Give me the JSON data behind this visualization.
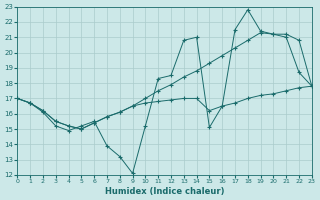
{
  "xlabel": "Humidex (Indice chaleur)",
  "bg_color": "#cce8e8",
  "grid_color": "#aacccc",
  "line_color": "#1a6b6b",
  "xlim": [
    0,
    23
  ],
  "ylim": [
    12,
    23
  ],
  "xticks": [
    0,
    1,
    2,
    3,
    4,
    5,
    6,
    7,
    8,
    9,
    10,
    11,
    12,
    13,
    14,
    15,
    16,
    17,
    18,
    19,
    20,
    21,
    22,
    23
  ],
  "yticks": [
    12,
    13,
    14,
    15,
    16,
    17,
    18,
    19,
    20,
    21,
    22,
    23
  ],
  "line1_x": [
    0,
    1,
    2,
    3,
    4,
    5,
    6,
    7,
    8,
    9,
    10,
    11,
    12,
    13,
    14,
    15,
    16,
    17,
    18,
    19,
    20,
    21,
    22,
    23
  ],
  "line1_y": [
    17,
    16.7,
    16.1,
    15.2,
    14.9,
    15.2,
    15.5,
    13.9,
    13.2,
    12.1,
    15.2,
    18.3,
    18.5,
    20.8,
    21.0,
    15.1,
    16.5,
    21.5,
    22.8,
    21.4,
    21.2,
    21.0,
    18.7,
    17.8
  ],
  "line2_x": [
    0,
    1,
    2,
    3,
    4,
    5,
    6,
    7,
    8,
    9,
    10,
    11,
    12,
    13,
    14,
    15,
    16,
    17,
    18,
    19,
    20,
    21,
    22,
    23
  ],
  "line2_y": [
    17,
    16.7,
    16.2,
    15.5,
    15.2,
    15.0,
    15.4,
    15.8,
    16.1,
    16.5,
    17.0,
    17.5,
    17.9,
    18.4,
    18.8,
    19.3,
    19.8,
    20.3,
    20.8,
    21.3,
    21.2,
    21.2,
    20.8,
    17.8
  ],
  "line3_x": [
    0,
    1,
    2,
    3,
    4,
    5,
    6,
    7,
    8,
    9,
    10,
    11,
    12,
    13,
    14,
    15,
    16,
    17,
    18,
    19,
    20,
    21,
    22,
    23
  ],
  "line3_y": [
    17,
    16.7,
    16.2,
    15.5,
    15.2,
    15.0,
    15.4,
    15.8,
    16.1,
    16.5,
    16.7,
    16.8,
    16.9,
    17.0,
    17.0,
    16.2,
    16.5,
    16.7,
    17.0,
    17.2,
    17.3,
    17.5,
    17.7,
    17.8
  ]
}
